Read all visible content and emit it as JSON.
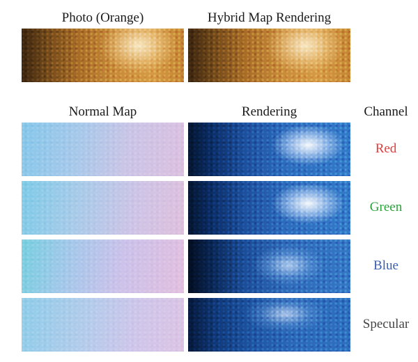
{
  "labels": {
    "photo": "Photo (Orange)",
    "hybrid": "Hybrid Map Rendering",
    "normal_map": "Normal Map",
    "rendering": "Rendering",
    "channel": "Channel"
  },
  "channels": [
    {
      "name": "Red",
      "color": "#e03c3c"
    },
    {
      "name": "Green",
      "color": "#2aa33a"
    },
    {
      "name": "Blue",
      "color": "#3a5fb0"
    },
    {
      "name": "Specular",
      "color": "#444444"
    }
  ]
}
